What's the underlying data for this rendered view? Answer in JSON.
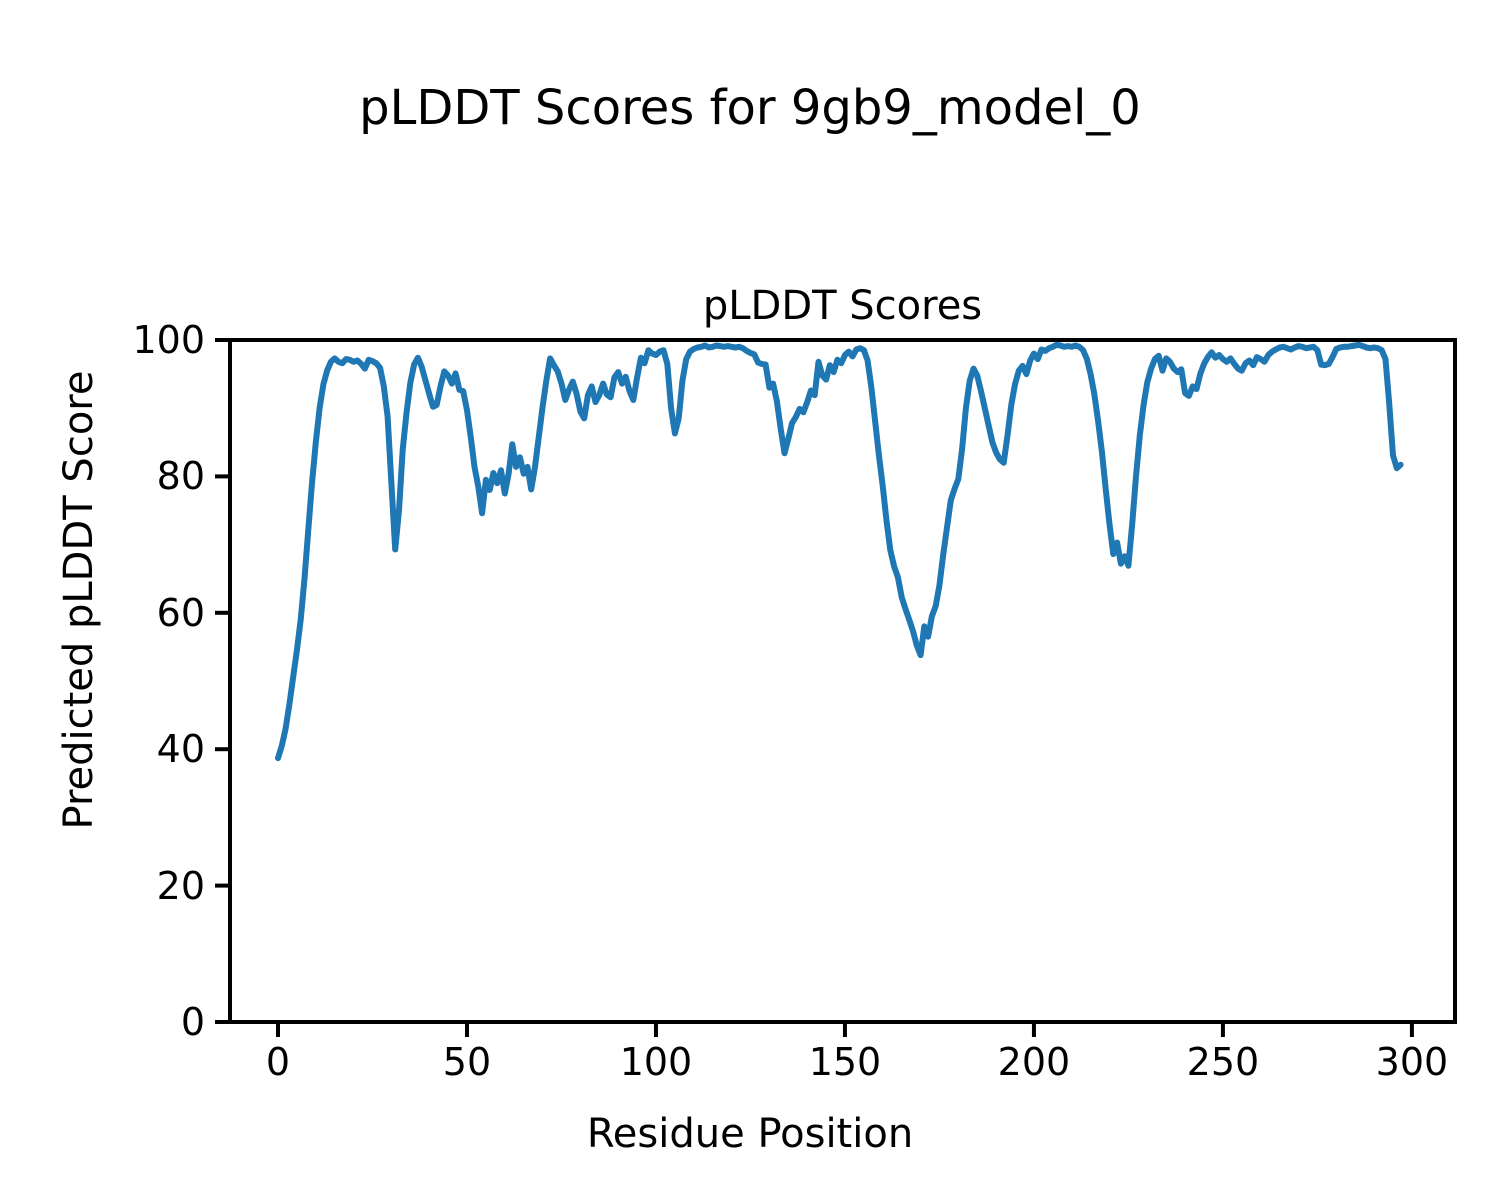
{
  "figure": {
    "title": "pLDDT Scores for 9gb9_model_0",
    "background_color": "#ffffff",
    "text_color": "#000000"
  },
  "chart_data": {
    "type": "line",
    "title": "pLDDT Scores",
    "xlabel": "Residue Position",
    "ylabel": "Predicted pLDDT Score",
    "legend": "none",
    "grid": false,
    "line_color": "#1f77b4",
    "line_width": 6,
    "frame_color": "#000000",
    "frame_width": 4,
    "x_ticks": [
      0,
      50,
      100,
      150,
      200,
      250,
      300
    ],
    "y_ticks": [
      0,
      20,
      40,
      60,
      80,
      100
    ],
    "xlim": [
      -12.7,
      311.4
    ],
    "ylim": [
      0,
      100
    ],
    "series": [
      {
        "name": "pLDDT",
        "x_start": 0,
        "x_step": 1,
        "values": [
          38.7,
          40.5,
          43.0,
          46.5,
          50.5,
          54.5,
          59.0,
          65.0,
          72.0,
          79.0,
          85.0,
          90.0,
          93.5,
          95.5,
          96.8,
          97.3,
          96.8,
          96.6,
          97.2,
          97.1,
          96.8,
          97.0,
          96.5,
          95.8,
          97.1,
          96.9,
          96.6,
          95.9,
          93.2,
          88.8,
          79.0,
          69.3,
          75.0,
          83.9,
          89.3,
          93.7,
          96.4,
          97.4,
          96.1,
          94.1,
          92.1,
          90.2,
          90.5,
          93.2,
          95.4,
          94.8,
          93.6,
          95.1,
          92.7,
          92.5,
          89.7,
          85.7,
          81.4,
          78.5,
          74.6,
          79.5,
          78.0,
          80.5,
          79.0,
          80.9,
          77.5,
          80.4,
          84.7,
          81.4,
          82.8,
          80.4,
          81.4,
          78.1,
          81.4,
          85.8,
          90.2,
          94.1,
          97.3,
          96.3,
          95.4,
          93.6,
          91.2,
          92.7,
          93.9,
          92.1,
          89.5,
          88.5,
          91.9,
          93.2,
          90.9,
          91.9,
          93.6,
          92.0,
          91.6,
          94.5,
          95.3,
          93.6,
          94.6,
          92.5,
          91.2,
          94.5,
          97.4,
          96.6,
          98.5,
          98.0,
          97.8,
          98.3,
          98.5,
          96.5,
          90.0,
          86.3,
          88.5,
          94.0,
          97.2,
          98.3,
          98.7,
          98.9,
          99.0,
          99.2,
          98.9,
          99.0,
          99.2,
          99.1,
          99.0,
          99.1,
          99.0,
          98.9,
          99.0,
          98.8,
          98.4,
          98.1,
          97.9,
          96.7,
          96.5,
          96.4,
          93.0,
          93.6,
          91.0,
          87.0,
          83.4,
          85.5,
          87.8,
          88.7,
          89.9,
          89.4,
          90.9,
          92.6,
          91.9,
          96.8,
          94.8,
          94.2,
          96.3,
          95.3,
          97.1,
          96.6,
          97.8,
          98.3,
          97.6,
          98.6,
          98.8,
          98.5,
          97.0,
          93.0,
          88.0,
          83.0,
          78.5,
          73.5,
          69.2,
          66.8,
          65.2,
          62.3,
          60.6,
          59.0,
          57.3,
          55.2,
          53.8,
          58.0,
          56.5,
          59.5,
          61.0,
          64.0,
          68.5,
          72.5,
          76.5,
          78.2,
          79.6,
          84.0,
          90.0,
          94.0,
          95.8,
          94.8,
          92.5,
          90.0,
          87.5,
          85.0,
          83.5,
          82.5,
          82.0,
          86.0,
          90.5,
          93.5,
          95.5,
          96.2,
          95.0,
          97.0,
          98.0,
          97.2,
          98.6,
          98.4,
          98.8,
          99.0,
          99.3,
          99.2,
          99.0,
          99.1,
          99.0,
          99.2,
          99.0,
          98.5,
          97.2,
          95.0,
          92.0,
          88.0,
          83.5,
          78.0,
          73.0,
          68.6,
          70.3,
          67.2,
          68.3,
          66.9,
          73.0,
          80.0,
          86.0,
          90.5,
          93.8,
          95.8,
          97.2,
          97.7,
          95.5,
          97.3,
          96.8,
          95.8,
          95.3,
          95.7,
          92.2,
          91.8,
          93.2,
          92.8,
          95.0,
          96.5,
          97.5,
          98.2,
          97.4,
          97.8,
          97.2,
          96.8,
          97.3,
          96.5,
          95.8,
          95.5,
          96.6,
          97.0,
          96.3,
          97.5,
          97.2,
          96.8,
          97.8,
          98.3,
          98.6,
          98.9,
          99.0,
          98.8,
          98.6,
          98.9,
          99.1,
          99.0,
          98.8,
          98.9,
          99.0,
          98.5,
          96.4,
          96.3,
          96.5,
          97.5,
          98.7,
          98.9,
          99.0,
          99.0,
          99.1,
          99.2,
          99.3,
          99.1,
          98.9,
          98.8,
          98.9,
          98.8,
          98.5,
          97.2,
          90.7,
          83.1,
          81.2,
          81.7
        ]
      }
    ]
  }
}
